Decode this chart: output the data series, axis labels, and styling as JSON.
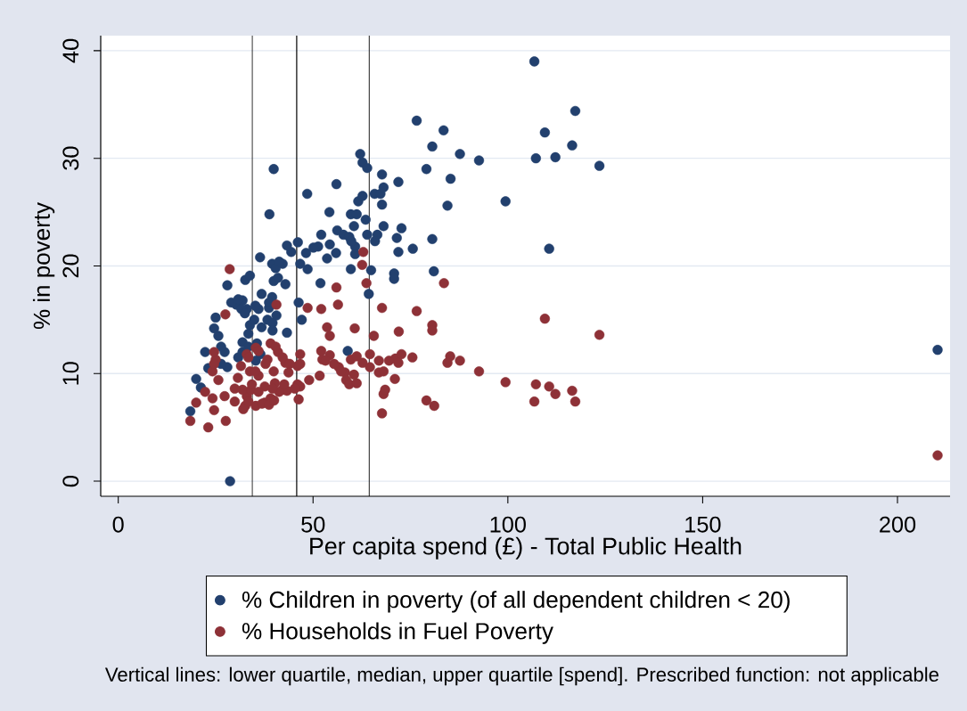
{
  "chart_data": {
    "type": "scatter",
    "xlabel": "Per capita spend (£) - Total Public Health",
    "ylabel": "% in poverty",
    "annotations": [
      "Vertical lines: lower quartile, median, upper quartile [spend]. Prescribed function: not applicable"
    ],
    "series": [
      {
        "name": "% Children in poverty (of all dependent children < 20)",
        "color": "#22406e",
        "x": [
          28.7,
          18.5,
          20.0,
          21.2,
          23.1,
          22.3,
          28.0,
          27.3,
          31.9,
          35.3,
          31.9,
          25.7,
          24.6,
          33.8,
          36.8,
          43.3,
          25.0,
          34.9,
          38.3,
          40.6,
          33.0,
          36.0,
          38.7,
          30.3,
          31.9,
          36.8,
          39.5,
          28.0,
          39.9,
          42.9,
          41.0,
          32.6,
          33.8,
          39.5,
          42.2,
          36.4,
          43.3,
          44.4,
          46.7,
          46.1,
          48.2,
          48.6,
          46.3,
          47.1,
          51.9,
          51.3,
          53.6,
          54.3,
          52.1,
          55.9,
          56.2,
          57.8,
          59.3,
          60.5,
          60.8,
          60.8,
          59.7,
          58.9,
          54.2,
          59.7,
          61.2,
          63.5,
          63.9,
          66.5,
          65.9,
          64.9,
          64.3,
          68.1,
          67.7,
          61.6,
          62.7,
          65.8,
          67.3,
          68.1,
          67.7,
          56.0,
          48.5,
          62.1,
          62.7,
          63.9,
          39.9,
          38.8,
          71.9,
          70.8,
          70.8,
          71.5,
          71.9,
          72.7,
          75.6,
          80.6,
          81.0,
          79.1,
          76.6,
          80.6,
          83.5,
          85.3,
          84.5,
          87.7,
          92.6,
          99.4,
          106.8,
          107.2,
          109.5,
          110.6,
          112.2,
          116.5,
          117.3,
          123.5,
          210.3,
          26.4,
          29.0,
          31.6,
          32.5,
          35.2,
          38.7,
          39.6,
          33.4,
          33.4,
          39.6,
          35.6,
          30.8,
          36.5,
          26.4,
          40.4,
          41.3,
          50.1,
          59.8,
          30.8
        ],
        "values": [
          0.0,
          6.5,
          9.5,
          8.7,
          10.5,
          12.0,
          10.6,
          12.0,
          12.0,
          11.2,
          12.9,
          13.5,
          14.2,
          14.5,
          14.3,
          13.8,
          15.2,
          15.0,
          15.0,
          15.4,
          16.0,
          16.0,
          16.1,
          16.4,
          16.8,
          17.4,
          17.1,
          18.2,
          18.6,
          18.3,
          18.9,
          18.7,
          19.1,
          20.2,
          20.2,
          20.8,
          21.9,
          21.3,
          20.2,
          22.2,
          21.2,
          19.7,
          16.6,
          15.0,
          18.4,
          21.8,
          20.7,
          22.0,
          22.9,
          21.2,
          23.3,
          22.9,
          22.7,
          23.7,
          21.8,
          21.1,
          19.7,
          12.1,
          25.0,
          24.8,
          24.8,
          24.3,
          22.9,
          22.9,
          22.3,
          19.6,
          17.4,
          23.7,
          25.7,
          26.0,
          26.5,
          26.7,
          26.7,
          27.3,
          28.5,
          27.6,
          26.7,
          30.4,
          29.6,
          29.1,
          29.0,
          24.8,
          27.8,
          19.3,
          18.8,
          22.6,
          21.3,
          23.5,
          21.6,
          22.5,
          19.5,
          29.0,
          33.5,
          31.1,
          32.6,
          28.1,
          25.6,
          30.4,
          29.8,
          26.0,
          39.0,
          30.0,
          32.4,
          21.6,
          30.1,
          31.2,
          34.4,
          29.3,
          12.2,
          12.5,
          16.6,
          16.0,
          15.6,
          16.3,
          16.6,
          14.7,
          13.7,
          12.5,
          14.0,
          12.8,
          11.5,
          11.8,
          10.9,
          19.8,
          20.4,
          21.7,
          22.3,
          16.9
        ]
      },
      {
        "name": "% Households in Fuel Poverty",
        "color": "#8e3137",
        "x": [
          18.5,
          20.0,
          22.3,
          23.1,
          24.2,
          24.6,
          27.3,
          27.6,
          25.7,
          24.2,
          25.0,
          24.6,
          27.5,
          28.6,
          29.9,
          32.6,
          35.3,
          37.6,
          39.1,
          33.0,
          31.9,
          34.1,
          37.6,
          40.2,
          42.2,
          43.3,
          30.7,
          36.0,
          33.8,
          39.9,
          43.7,
          31.5,
          38.3,
          42.9,
          46.0,
          33.0,
          41.0,
          35.3,
          39.1,
          40.6,
          46.7,
          46.7,
          46.7,
          46.0,
          46.3,
          49.0,
          51.7,
          52.1,
          52.4,
          54.3,
          56.6,
          58.2,
          58.5,
          59.3,
          60.5,
          61.2,
          59.7,
          61.2,
          62.7,
          64.6,
          64.6,
          66.9,
          66.9,
          68.1,
          68.1,
          68.5,
          67.7,
          48.6,
          52.1,
          56.4,
          53.6,
          54.3,
          60.7,
          65.6,
          67.7,
          56.0,
          63.7,
          62.6,
          62.9,
          71.0,
          71.1,
          72.7,
          71.9,
          75.5,
          72.0,
          76.6,
          80.6,
          80.6,
          83.6,
          79.1,
          81.1,
          85.2,
          84.5,
          87.7,
          92.6,
          99.4,
          107.2,
          106.8,
          110.6,
          112.2,
          116.5,
          117.3,
          109.5,
          123.5,
          210.3,
          33.4,
          36.9,
          38.7,
          40.0,
          41.3,
          42.6,
          39.6,
          36.0,
          34.3,
          33.4,
          36.0,
          40.4,
          42.2,
          44.0,
          37.8,
          35.2,
          29.9,
          32.1,
          45.3,
          24.6,
          55.4,
          57.2,
          69.5,
          53.2
        ],
        "values": [
          5.6,
          7.3,
          8.3,
          5.0,
          7.7,
          6.6,
          7.9,
          5.6,
          9.4,
          10.2,
          11.3,
          12.0,
          15.5,
          19.7,
          7.4,
          7.0,
          7.0,
          7.3,
          7.7,
          7.9,
          8.5,
          8.5,
          8.8,
          9.1,
          8.5,
          8.4,
          9.6,
          9.8,
          10.2,
          10.2,
          10.1,
          10.7,
          11.3,
          11.0,
          10.7,
          11.8,
          12.0,
          12.4,
          12.8,
          16.4,
          11.8,
          10.9,
          8.8,
          9.0,
          7.6,
          9.4,
          9.8,
          12.1,
          11.3,
          11.7,
          10.6,
          10.1,
          9.4,
          9.0,
          9.9,
          9.1,
          11.3,
          11.6,
          11.0,
          11.8,
          10.6,
          11.2,
          10.1,
          10.2,
          8.1,
          8.5,
          6.3,
          16.1,
          16.0,
          16.4,
          14.3,
          13.5,
          14.2,
          13.5,
          16.1,
          18.0,
          18.4,
          20.1,
          21.3,
          9.5,
          11.4,
          11.8,
          11.0,
          11.5,
          13.9,
          15.8,
          14.5,
          14.0,
          18.4,
          7.5,
          7.0,
          11.6,
          11.0,
          11.2,
          10.2,
          9.2,
          9.0,
          7.4,
          8.8,
          8.1,
          8.4,
          7.4,
          15.1,
          13.6,
          2.4,
          7.4,
          7.2,
          7.1,
          7.5,
          8.3,
          9.0,
          8.6,
          8.3,
          9.0,
          11.5,
          12.1,
          12.5,
          11.5,
          10.9,
          10.9,
          10.2,
          8.6,
          6.7,
          8.6,
          10.9,
          10.9,
          10.2,
          11.2,
          11.2
        ]
      }
    ],
    "xlim": [
      -4.5,
      213.5
    ],
    "ylim": [
      -1.4,
      41.4
    ],
    "xticks": [
      0,
      50,
      100,
      150,
      200
    ],
    "yticks": [
      0,
      10,
      20,
      30,
      40
    ],
    "grid": "y",
    "legend": "bottom",
    "marker": "circle",
    "ref_lines": [
      {
        "axis": "x",
        "value": 34.4,
        "color": "#000000"
      },
      {
        "axis": "x",
        "value": 45.8,
        "color": "#000000"
      },
      {
        "axis": "x",
        "value": 64.4,
        "color": "#000000"
      }
    ]
  }
}
